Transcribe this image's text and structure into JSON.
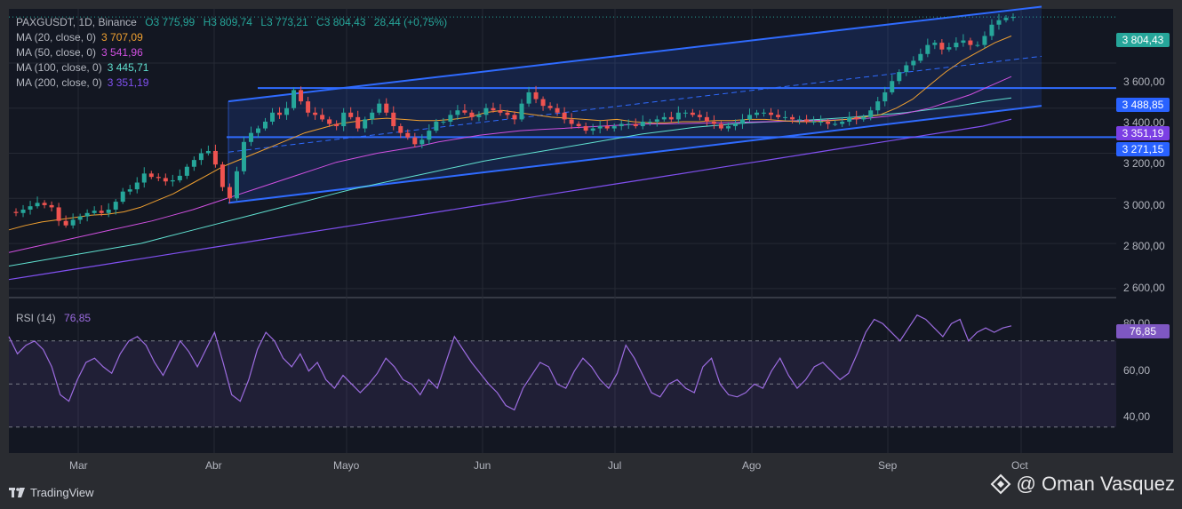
{
  "header": {
    "symbol": "PAXGUSDT, 1D, Binance",
    "open": "O3 775,99",
    "high": "H3 809,74",
    "low": "L3 773,21",
    "close": "C3 804,43",
    "change": "28,44 (+0,75%)"
  },
  "indicators": [
    {
      "label": "MA (20, close, 0)",
      "value": "3 707,09",
      "color": "#f0a030"
    },
    {
      "label": "MA (50, close, 0)",
      "value": "3 541,96",
      "color": "#d050e0"
    },
    {
      "label": "MA (100, close, 0)",
      "value": "3 445,71",
      "color": "#60e0d0"
    },
    {
      "label": "MA (200, close, 0)",
      "value": "3 351,19",
      "color": "#8050f0"
    }
  ],
  "rsi": {
    "label": "RSI (14)",
    "value": "76,85",
    "color": "#9c6ce0"
  },
  "price_axis": {
    "ticks": [
      "3 600,00",
      "3 400,00",
      "3 200,00",
      "3 000,00",
      "2 800,00",
      "2 600,00"
    ]
  },
  "rsi_axis": {
    "ticks": [
      "80,00",
      "60,00",
      "40,00"
    ]
  },
  "time_axis": {
    "ticks": [
      "Mar",
      "Abr",
      "Mayo",
      "Jun",
      "Jul",
      "Ago",
      "Sep",
      "Oct"
    ]
  },
  "price_tags": [
    {
      "value": "3 804,43",
      "color": "#26a69a"
    },
    {
      "value": "3 488,85",
      "color": "#2962ff"
    },
    {
      "value": "3 351,19",
      "color": "#7b3fe4"
    },
    {
      "value": "3 271,15",
      "color": "#2962ff"
    }
  ],
  "rsi_tag": {
    "value": "76,85",
    "color": "#7e57c2"
  },
  "footer": {
    "brand": "TradingView",
    "watermark": "@ Oman Vasquez"
  },
  "chart_data": {
    "type": "candlestick",
    "y_range": [
      2560,
      3840
    ],
    "rsi_range": [
      20,
      86
    ],
    "horizontal_levels": [
      3488.85,
      3271.15
    ],
    "price_samples": [
      2940,
      2935,
      2950,
      2965,
      2980,
      2970,
      2960,
      2900,
      2880,
      2905,
      2920,
      2935,
      2945,
      2935,
      2950,
      2985,
      3030,
      3040,
      3070,
      3110,
      3095,
      3090,
      3075,
      3080,
      3100,
      3140,
      3170,
      3200,
      3210,
      3150,
      3050,
      3000,
      3120,
      3250,
      3290,
      3310,
      3340,
      3380,
      3370,
      3400,
      3480,
      3430,
      3380,
      3370,
      3350,
      3330,
      3320,
      3380,
      3360,
      3310,
      3350,
      3380,
      3420,
      3380,
      3320,
      3290,
      3270,
      3240,
      3260,
      3300,
      3340,
      3340,
      3370,
      3390,
      3380,
      3360,
      3370,
      3400,
      3390,
      3380,
      3370,
      3350,
      3420,
      3470,
      3440,
      3410,
      3400,
      3380,
      3350,
      3330,
      3320,
      3300,
      3310,
      3320,
      3310,
      3320,
      3330,
      3330,
      3320,
      3340,
      3340,
      3350,
      3360,
      3350,
      3380,
      3380,
      3370,
      3360,
      3340,
      3330,
      3310,
      3320,
      3330,
      3350,
      3370,
      3380,
      3380,
      3370,
      3360,
      3360,
      3350,
      3350,
      3340,
      3340,
      3340,
      3330,
      3330,
      3340,
      3360,
      3350,
      3360,
      3390,
      3430,
      3470,
      3520,
      3560,
      3590,
      3610,
      3640,
      3680,
      3690,
      3660,
      3670,
      3690,
      3700,
      3680,
      3680,
      3720,
      3770,
      3790,
      3800,
      3804
    ],
    "ma20_samples": [
      2860,
      2880,
      2895,
      2905,
      2915,
      2925,
      2930,
      2940,
      2960,
      2990,
      3020,
      3060,
      3100,
      3140,
      3170,
      3200,
      3230,
      3260,
      3290,
      3310,
      3330,
      3340,
      3350,
      3355,
      3350,
      3345,
      3345,
      3350,
      3360,
      3380,
      3390,
      3380,
      3370,
      3360,
      3355,
      3350,
      3345,
      3350,
      3340,
      3335,
      3335,
      3340,
      3340,
      3345,
      3345,
      3350,
      3350,
      3345,
      3340,
      3340,
      3345,
      3350,
      3360,
      3370,
      3400,
      3440,
      3500,
      3560,
      3610,
      3650,
      3690,
      3720
    ],
    "ma50_samples": [
      2760,
      2780,
      2800,
      2820,
      2840,
      2860,
      2880,
      2900,
      2925,
      2950,
      2980,
      3010,
      3040,
      3070,
      3100,
      3130,
      3160,
      3180,
      3200,
      3215,
      3230,
      3250,
      3265,
      3280,
      3290,
      3300,
      3305,
      3310,
      3315,
      3320,
      3325,
      3330,
      3330,
      3332,
      3334,
      3335,
      3338,
      3340,
      3342,
      3344,
      3346,
      3350,
      3355,
      3365,
      3380,
      3400,
      3430,
      3460,
      3500,
      3540
    ],
    "ma100_samples": [
      2700,
      2720,
      2740,
      2760,
      2780,
      2800,
      2830,
      2860,
      2890,
      2920,
      2950,
      2980,
      3010,
      3040,
      3065,
      3090,
      3115,
      3140,
      3165,
      3185,
      3205,
      3225,
      3245,
      3265,
      3285,
      3300,
      3315,
      3325,
      3335,
      3340,
      3345,
      3352,
      3360,
      3370,
      3380,
      3395,
      3410,
      3430,
      3445
    ],
    "ma200_samples": [
      2640,
      2660,
      2680,
      2700,
      2720,
      2740,
      2760,
      2780,
      2800,
      2820,
      2840,
      2860,
      2880,
      2900,
      2920,
      2940,
      2960,
      2980,
      3000,
      3020,
      3040,
      3060,
      3080,
      3100,
      3120,
      3140,
      3160,
      3180,
      3200,
      3220,
      3240,
      3260,
      3280,
      3300,
      3320,
      3351
    ],
    "rsi_samples": [
      72,
      64,
      68,
      70,
      66,
      58,
      45,
      42,
      52,
      60,
      62,
      58,
      55,
      64,
      70,
      72,
      68,
      60,
      54,
      62,
      70,
      65,
      58,
      66,
      74,
      60,
      45,
      42,
      52,
      66,
      74,
      70,
      62,
      58,
      64,
      56,
      60,
      52,
      48,
      54,
      50,
      46,
      50,
      55,
      62,
      58,
      52,
      50,
      45,
      52,
      48,
      60,
      72,
      66,
      60,
      55,
      50,
      46,
      40,
      38,
      48,
      54,
      60,
      58,
      50,
      48,
      56,
      62,
      58,
      52,
      48,
      55,
      68,
      62,
      54,
      46,
      44,
      50,
      52,
      48,
      46,
      58,
      62,
      50,
      45,
      44,
      46,
      50,
      48,
      56,
      62,
      54,
      48,
      52,
      58,
      60,
      56,
      52,
      55,
      64,
      74,
      80,
      78,
      74,
      70,
      76,
      82,
      80,
      76,
      72,
      78,
      80,
      70,
      74,
      76,
      74,
      76,
      77
    ]
  }
}
